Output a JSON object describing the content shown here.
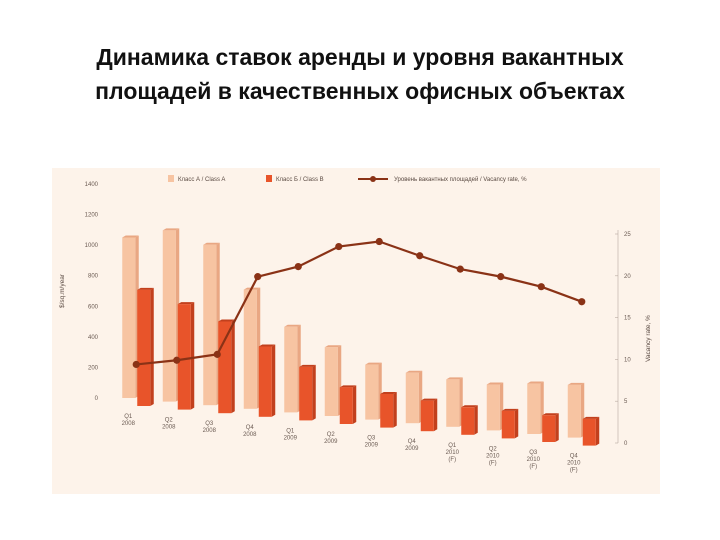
{
  "page": {
    "title_line1": "Динамика ставок аренды и уровня вакантных",
    "title_line2": "площадей в качественных офисных объектах"
  },
  "chart_data": {
    "type": "bar",
    "categories": [
      [
        "Q1",
        "2008",
        ""
      ],
      [
        "Q2",
        "2008",
        ""
      ],
      [
        "Q3",
        "2008",
        ""
      ],
      [
        "Q4",
        "2008",
        ""
      ],
      [
        "Q1",
        "2009",
        ""
      ],
      [
        "Q2",
        "2009",
        ""
      ],
      [
        "Q3",
        "2009",
        ""
      ],
      [
        "Q4",
        "2009",
        ""
      ],
      [
        "Q1",
        "2010",
        "(F)"
      ],
      [
        "Q2",
        "2010",
        "(F)"
      ],
      [
        "Q3",
        "2010",
        "(F)"
      ],
      [
        "Q4",
        "2010",
        "(F)"
      ]
    ],
    "series": [
      {
        "name": "Класс А / Class A",
        "type": "bar",
        "axis": "left",
        "color": "#f7c4a2",
        "values": [
          1050,
          1120,
          1050,
          780,
          560,
          450,
          360,
          330,
          310,
          300,
          330,
          345
        ]
      },
      {
        "name": "Класс Б / Class B",
        "type": "bar",
        "axis": "left",
        "color": "#e8542a",
        "values": [
          760,
          690,
          600,
          460,
          350,
          240,
          220,
          200,
          180,
          180,
          175,
          175
        ]
      },
      {
        "name": "Уровень вакантных площадей / Vacancy rate, %",
        "type": "line",
        "axis": "right",
        "color": "#8a3216",
        "values": [
          9.4,
          9.9,
          10.6,
          19.9,
          21.1,
          23.5,
          24.1,
          22.4,
          20.8,
          19.9,
          18.7,
          16.9
        ]
      }
    ],
    "ylabel": "$/sq.m/year",
    "y2label": "Vacancy rate, %",
    "ylim": [
      0,
      1400
    ],
    "yticks": [
      0,
      200,
      400,
      600,
      800,
      1000,
      1200,
      1400
    ],
    "y2lim": [
      0,
      25
    ],
    "y2ticks": [
      0,
      5,
      10,
      15,
      20,
      25
    ],
    "legend_position": "top"
  }
}
